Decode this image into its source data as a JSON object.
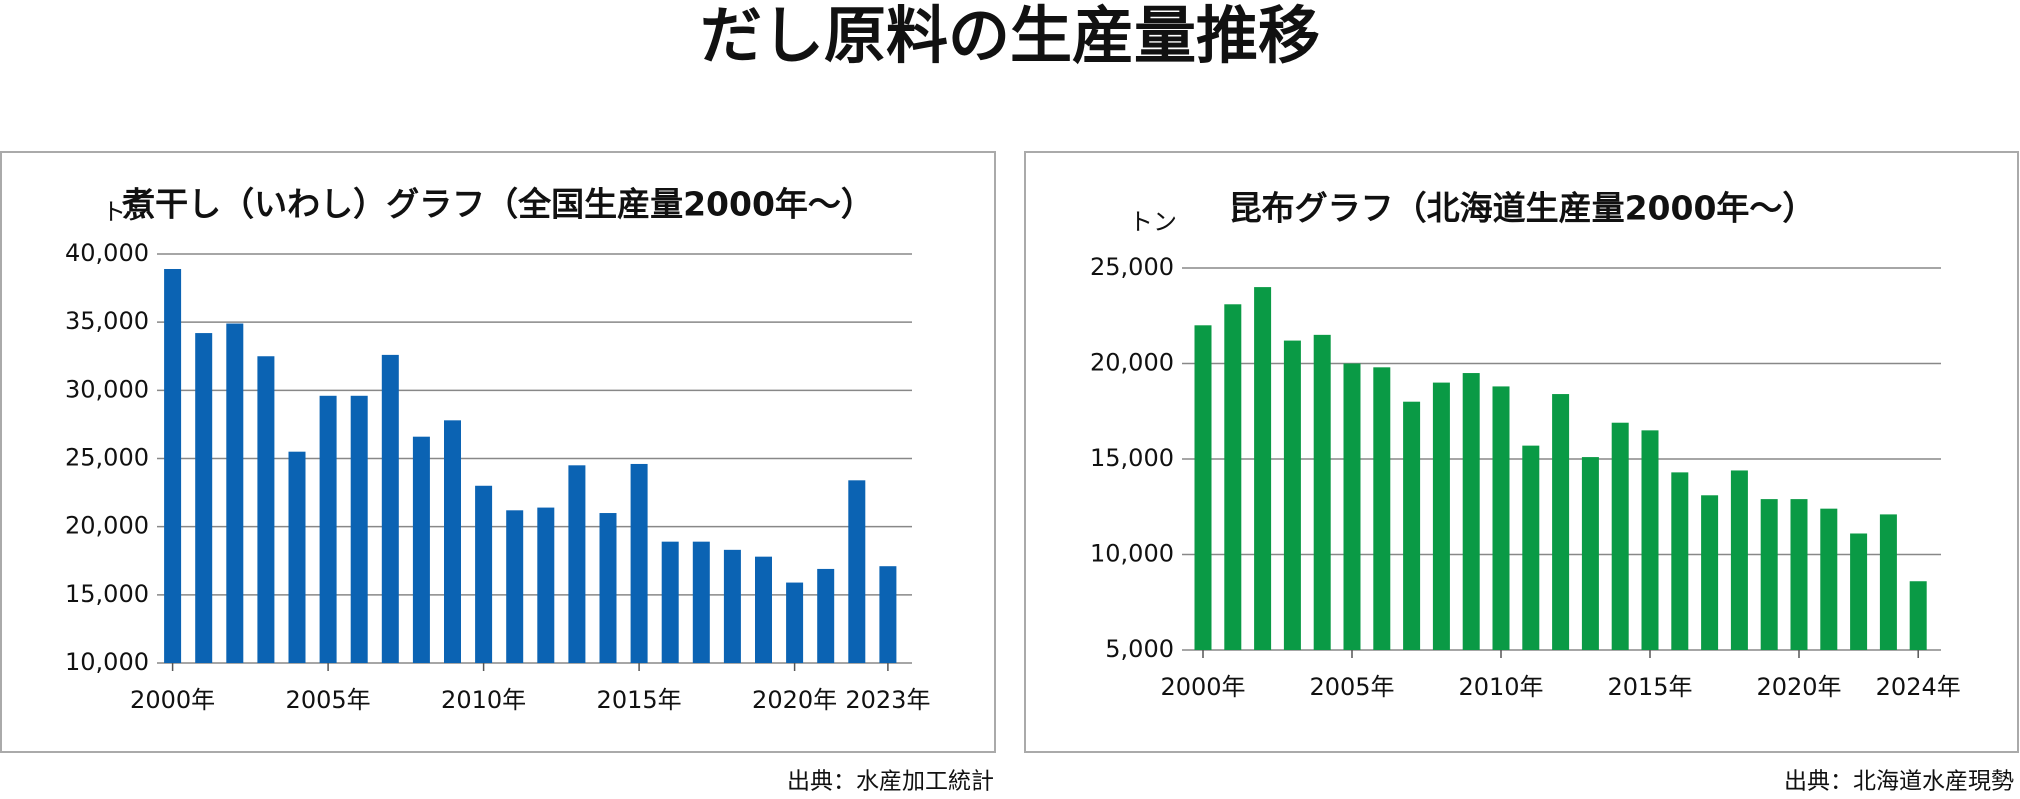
{
  "title": "だし原料の生産量推移",
  "chart_data": [
    {
      "type": "bar",
      "title": "煮干し（いわし）グラフ（全国生産量2000年〜）",
      "y_unit": "トン",
      "source": "出典：水産加工統計",
      "categories": [
        "2000年",
        null,
        null,
        null,
        null,
        "2005年",
        null,
        null,
        null,
        null,
        "2010年",
        null,
        null,
        null,
        null,
        "2015年",
        null,
        null,
        null,
        null,
        "2020年",
        null,
        null,
        "2023年"
      ],
      "values": [
        38900,
        34200,
        34900,
        32500,
        25500,
        29600,
        29600,
        32600,
        26600,
        27800,
        23000,
        21200,
        21400,
        24500,
        21000,
        24600,
        18900,
        18900,
        18300,
        17800,
        15900,
        16900,
        23400,
        17100
      ],
      "color": "#0b63b3",
      "ylim": [
        10000,
        40000
      ],
      "yticks": [
        {
          "value": 10000,
          "label": "10,000"
        },
        {
          "value": 15000,
          "label": "15,000"
        },
        {
          "value": 20000,
          "label": "20,000"
        },
        {
          "value": 25000,
          "label": "25,000"
        },
        {
          "value": 30000,
          "label": "30,000"
        },
        {
          "value": 35000,
          "label": "35,000"
        },
        {
          "value": 40000,
          "label": "40,000"
        }
      ],
      "grid": true
    },
    {
      "type": "bar",
      "title": "昆布グラフ（北海道生産量2000年〜）",
      "y_unit": "トン",
      "source": "出典：北海道水産現勢",
      "categories": [
        "2000年",
        null,
        null,
        null,
        null,
        "2005年",
        null,
        null,
        null,
        null,
        "2010年",
        null,
        null,
        null,
        null,
        "2015年",
        null,
        null,
        null,
        null,
        "2020年",
        null,
        null,
        null,
        "2024年"
      ],
      "values": [
        22000,
        23100,
        24000,
        21200,
        21500,
        20000,
        19800,
        18000,
        19000,
        19500,
        18800,
        15700,
        18400,
        15100,
        16900,
        16500,
        14300,
        13100,
        14400,
        12900,
        12900,
        12400,
        11100,
        12100,
        8600
      ],
      "color": "#0a9a45",
      "ylim": [
        5000,
        25000
      ],
      "yticks": [
        {
          "value": 5000,
          "label": "5,000"
        },
        {
          "value": 10000,
          "label": "10,000"
        },
        {
          "value": 15000,
          "label": "15,000"
        },
        {
          "value": 20000,
          "label": "20,000"
        },
        {
          "value": 25000,
          "label": "25,000"
        }
      ],
      "grid": true
    }
  ]
}
